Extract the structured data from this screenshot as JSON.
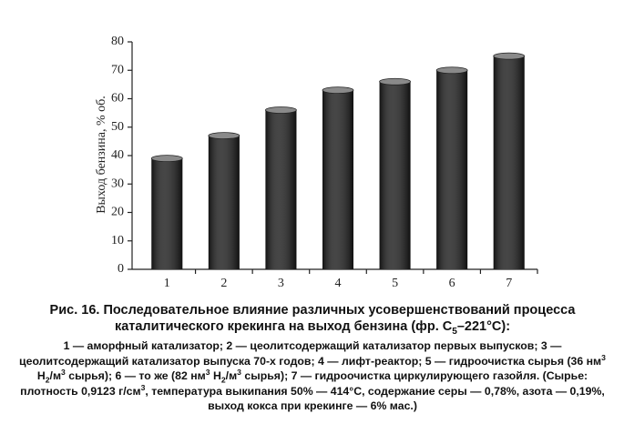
{
  "chart_data": {
    "type": "bar",
    "y_label": "Выход бензина, % об.",
    "categories": [
      "1",
      "2",
      "3",
      "4",
      "5",
      "6",
      "7"
    ],
    "values": [
      39,
      47,
      56,
      63,
      66,
      70,
      75
    ],
    "color": "#1c1c1c",
    "ylim": [
      0,
      80
    ],
    "yticks": [
      0,
      10,
      20,
      30,
      40,
      50,
      60,
      70,
      80
    ],
    "grid": false
  },
  "caption": {
    "title": [
      "Рис. 16. Последовательное влияние различных усовершенствований процесса каталитического крекинга на выход бензина (фр. C",
      "5",
      "–221°C):"
    ],
    "notes": [
      "1 — аморфный катализатор; 2 — цеолитсодержащий катализатор первых выпусков; 3 — цеолитсодержащий катализатор выпуска 70-х годов; 4 — лифт-реактор; 5 — гидроочистка сырья (36 нм",
      "3",
      " H",
      "2",
      "/м",
      "3",
      " сырья); 6 — то же (82 нм",
      "3",
      " H",
      "2",
      "/м",
      "3",
      " сырья); 7 — гидроочистка циркулирующего газойля. (Сырье: плотность 0,9123 г/см",
      "3",
      ", температура выкипания 50% — 414°C, содержание серы — 0,78%, азота — 0,19%, выход кокса при крекинге — 6% мас.)"
    ]
  }
}
